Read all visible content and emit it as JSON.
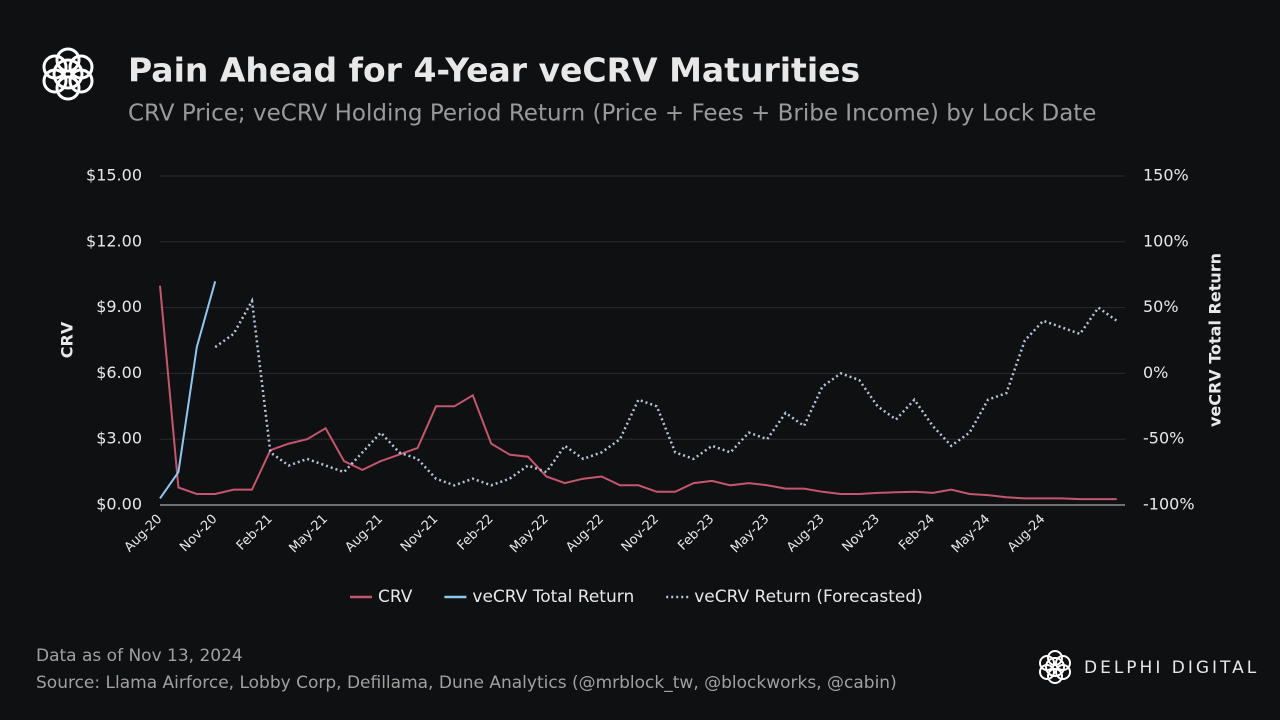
{
  "chart_data": {
    "type": "line",
    "title": "Pain Ahead for 4-Year veCRV Maturities",
    "subtitle": "CRV Price; veCRV Holding Period Return (Price + Fees + Bribe Income) by Lock Date",
    "y_label": "CRV",
    "y2_label": "veCRV Total Return",
    "categories": [
      "Aug-20",
      null,
      null,
      "Nov-20",
      null,
      null,
      "Feb-21",
      null,
      null,
      "May-21",
      null,
      null,
      "Aug-21",
      null,
      null,
      "Nov-21",
      null,
      null,
      "Feb-22",
      null,
      null,
      "May-22",
      null,
      null,
      "Aug-22",
      null,
      null,
      "Nov-22",
      null,
      null,
      "Feb-23",
      null,
      null,
      "May-23",
      null,
      null,
      "Aug-23",
      null,
      null,
      "Nov-23",
      null,
      null,
      "Feb-24",
      null,
      null,
      "May-24",
      null,
      null,
      "Aug-24",
      null,
      null,
      null,
      null
    ],
    "ylim": [
      0,
      15
    ],
    "yticks": [
      {
        "value": 0,
        "label": "$0.00"
      },
      {
        "value": 3,
        "label": "$3.00"
      },
      {
        "value": 6,
        "label": "$6.00"
      },
      {
        "value": 9,
        "label": "$9.00"
      },
      {
        "value": 12,
        "label": "$12.00"
      },
      {
        "value": 15,
        "label": "$15.00"
      }
    ],
    "y2lim": [
      -100,
      150
    ],
    "y2ticks": [
      {
        "value": -100,
        "label": "-100%"
      },
      {
        "value": -50,
        "label": "-50%"
      },
      {
        "value": 0,
        "label": "0%"
      },
      {
        "value": 50,
        "label": "50%"
      },
      {
        "value": 100,
        "label": "100%"
      },
      {
        "value": 150,
        "label": "150%"
      }
    ],
    "grid": true,
    "legend": "bottom",
    "series": [
      {
        "name": "CRV",
        "color": "#c5566f",
        "dashed": false,
        "values": [
          10,
          0.8,
          0.5,
          0.5,
          0.7,
          0.7,
          2.5,
          2.8,
          3.0,
          3.5,
          2.0,
          1.6,
          2.0,
          2.3,
          2.6,
          4.5,
          4.5,
          5.0,
          2.8,
          2.3,
          2.2,
          1.3,
          1.0,
          1.2,
          1.3,
          0.9,
          0.9,
          0.6,
          0.6,
          1.0,
          1.1,
          0.9,
          1.0,
          0.9,
          0.75,
          0.75,
          0.6,
          0.5,
          0.5,
          0.55,
          0.58,
          0.6,
          0.55,
          0.7,
          0.5,
          0.45,
          0.35,
          0.3,
          0.3,
          0.3,
          0.27,
          0.27,
          0.27
        ]
      },
      {
        "name": "veCRV Total Return",
        "color": "#8ec7f0",
        "dashed": false,
        "axis": "y2",
        "values": [
          -95,
          -75,
          20,
          70,
          null,
          null,
          null,
          null,
          null,
          null,
          null,
          null,
          null,
          null,
          null,
          null,
          null,
          null,
          null,
          null,
          null,
          null,
          null,
          null,
          null,
          null,
          null,
          null,
          null,
          null,
          null,
          null,
          null,
          null,
          null,
          null,
          null,
          null,
          null,
          null,
          null,
          null,
          null,
          null,
          null,
          null,
          null,
          null,
          null,
          null,
          null,
          null,
          null
        ]
      },
      {
        "name": "veCRV Return (Forecasted)",
        "color": "#b6c3d6",
        "dashed": true,
        "axis": "y2",
        "values": [
          null,
          null,
          null,
          20,
          30,
          55,
          -60,
          -70,
          -65,
          -70,
          -75,
          -60,
          -45,
          -60,
          -65,
          -80,
          -85,
          -80,
          -85,
          -80,
          -70,
          -75,
          -55,
          -65,
          -60,
          -50,
          -20,
          -25,
          -60,
          -65,
          -55,
          -60,
          -45,
          -50,
          -30,
          -40,
          -10,
          0,
          -5,
          -25,
          -35,
          -20,
          -40,
          -55,
          -45,
          -20,
          -15,
          25,
          40,
          35,
          30,
          50,
          40
        ]
      }
    ]
  },
  "footer": {
    "note": "Data as of Nov 13, 2024",
    "source": "Source: Llama Airforce, Lobby Corp, Defillama, Dune Analytics (@mrblock_tw, @blockworks, @cabin)",
    "brand": "DELPHI DIGITAL"
  }
}
